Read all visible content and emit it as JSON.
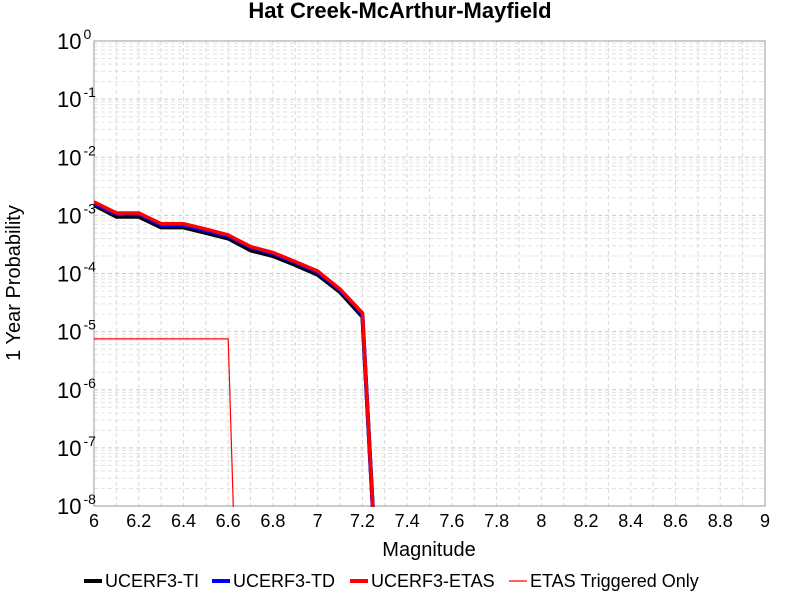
{
  "chart_data": {
    "type": "line",
    "title": "Hat Creek-McArthur-Mayfield",
    "xlabel": "Magnitude",
    "ylabel": "1 Year Probability",
    "xlim": [
      6,
      9
    ],
    "ylim": [
      1e-08,
      1
    ],
    "yscale": "log",
    "grid": true,
    "legend_position": "bottom",
    "xticks": [
      "6",
      "6.2",
      "6.4",
      "6.6",
      "6.8",
      "7",
      "7.2",
      "7.4",
      "7.6",
      "7.8",
      "8",
      "8.2",
      "8.4",
      "8.6",
      "8.8",
      "9"
    ],
    "yticks": [
      {
        "base": "10",
        "exp": "0"
      },
      {
        "base": "10",
        "exp": "-1"
      },
      {
        "base": "10",
        "exp": "-2"
      },
      {
        "base": "10",
        "exp": "-3"
      },
      {
        "base": "10",
        "exp": "-4"
      },
      {
        "base": "10",
        "exp": "-5"
      },
      {
        "base": "10",
        "exp": "-6"
      },
      {
        "base": "10",
        "exp": "-7"
      },
      {
        "base": "10",
        "exp": "-8"
      }
    ],
    "series": [
      {
        "name": "UCERF3-TI",
        "color": "#000000",
        "x": [
          6.0,
          6.1,
          6.2,
          6.3,
          6.4,
          6.5,
          6.6,
          6.7,
          6.8,
          6.9,
          7.0,
          7.1,
          7.2,
          7.25
        ],
        "y": [
          0.0015,
          0.00095,
          0.00095,
          0.00062,
          0.00062,
          0.0005,
          0.0004,
          0.00025,
          0.0002,
          0.00014,
          9.5e-05,
          4.8e-05,
          1.8e-05,
          1.2e-09
        ]
      },
      {
        "name": "UCERF3-TD",
        "color": "#0000ff",
        "x": [
          6.0,
          6.1,
          6.2,
          6.3,
          6.4,
          6.5,
          6.6,
          6.7,
          6.8,
          6.9,
          7.0,
          7.1,
          7.2,
          7.25
        ],
        "y": [
          0.0016,
          0.00105,
          0.00105,
          0.00068,
          0.00068,
          0.00055,
          0.00044,
          0.00028,
          0.00022,
          0.000155,
          0.000105,
          5.2e-05,
          2e-05,
          1.2e-09
        ]
      },
      {
        "name": "UCERF3-ETAS",
        "color": "#ff0000",
        "x": [
          6.0,
          6.1,
          6.2,
          6.3,
          6.4,
          6.5,
          6.6,
          6.7,
          6.8,
          6.9,
          7.0,
          7.1,
          7.2,
          7.25
        ],
        "y": [
          0.0017,
          0.0011,
          0.0011,
          0.00072,
          0.00072,
          0.00058,
          0.00046,
          0.00029,
          0.00023,
          0.00016,
          0.00011,
          5.4e-05,
          2.1e-05,
          1.2e-09
        ]
      },
      {
        "name": "ETAS Triggered Only",
        "color": "#ff0000",
        "thin": true,
        "x": [
          6.0,
          6.6,
          6.625
        ],
        "y": [
          7.5e-06,
          7.5e-06,
          1.2e-09
        ]
      }
    ]
  }
}
